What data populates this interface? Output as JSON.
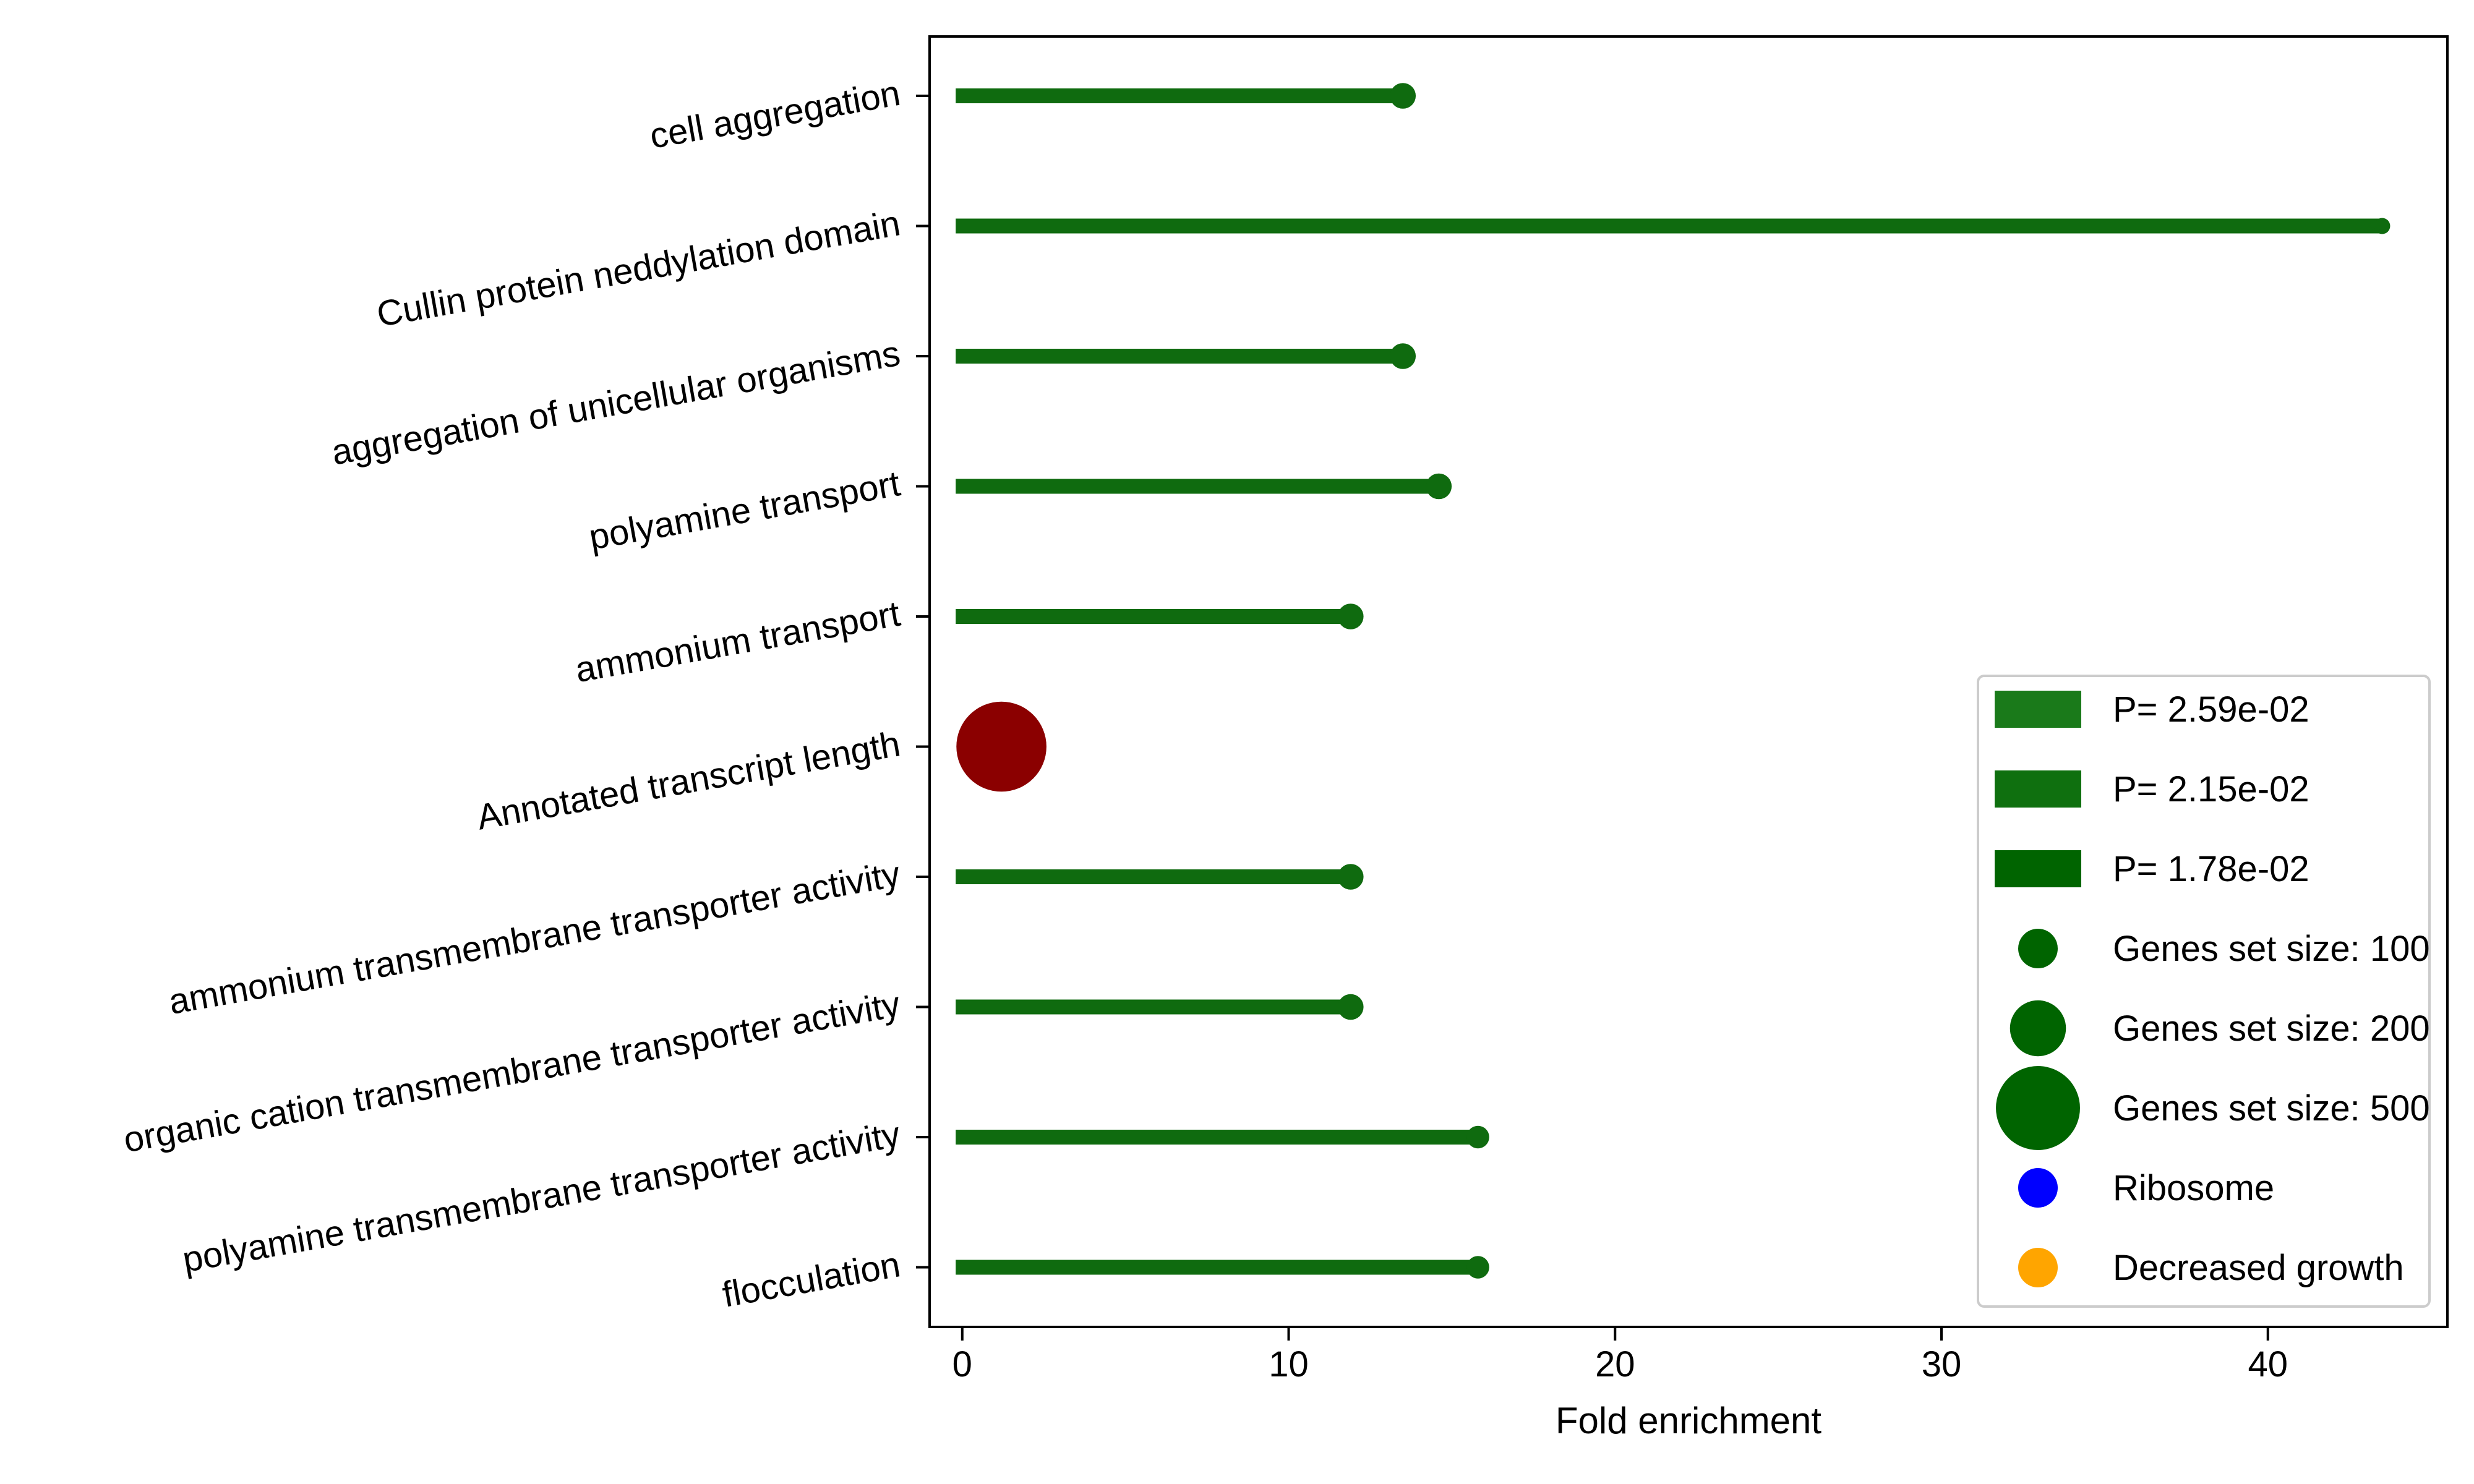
{
  "chart_data": {
    "type": "lollipop",
    "title": "",
    "xlabel": "Fold enrichment",
    "ylabel": "",
    "xlim": [
      -1,
      45.5
    ],
    "xticks": [
      0,
      10,
      20,
      30,
      40
    ],
    "xtick_labels": [
      "0",
      "10",
      "20",
      "30",
      "40"
    ],
    "grid": false,
    "categories": [
      "cell aggregation",
      "Cullin protein neddylation domain",
      "aggregation of unicellular organisms",
      "polyamine transport",
      "ammonium transport",
      "Annotated transcript length",
      "ammonium transmembrane transporter activity",
      "organic cation transmembrane transporter activity",
      "polyamine transmembrane transporter activity",
      "flocculation"
    ],
    "series": [
      {
        "kind": "stem",
        "stem_start": -0.2,
        "values": [
          13.5,
          43.5,
          13.5,
          14.6,
          11.9,
          null,
          11.9,
          11.9,
          15.8,
          15.8
        ],
        "marker_sizes": [
          8,
          5,
          8,
          8,
          8,
          null,
          8,
          8,
          7,
          7
        ],
        "color": "#0f6b0f"
      },
      {
        "kind": "point",
        "category": "Annotated transcript length",
        "value": 1.2,
        "marker_size": 28,
        "color": "#8b0000"
      }
    ],
    "legend": {
      "placement": "lower-right",
      "entries": [
        {
          "kind": "patch",
          "label": "P= 2.59e-02",
          "color": "#1a7a1a"
        },
        {
          "kind": "patch",
          "label": "P= 2.15e-02",
          "color": "#0f700f"
        },
        {
          "kind": "patch",
          "label": "P= 1.78e-02",
          "color": "#006400"
        },
        {
          "kind": "marker",
          "label": "Genes set size: 100",
          "color": "#006400",
          "size": 100
        },
        {
          "kind": "marker",
          "label": "Genes set size: 200",
          "color": "#006400",
          "size": 200
        },
        {
          "kind": "marker",
          "label": "Genes set size: 500",
          "color": "#006400",
          "size": 500
        },
        {
          "kind": "marker",
          "label": "Ribosome",
          "color": "#0000ff",
          "size": 100
        },
        {
          "kind": "marker",
          "label": "Decreased growth",
          "color": "#ffa500",
          "size": 100
        }
      ]
    }
  }
}
